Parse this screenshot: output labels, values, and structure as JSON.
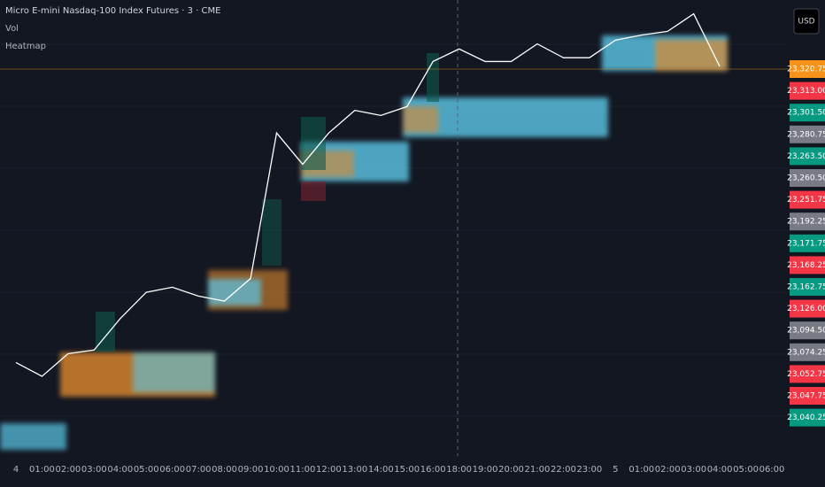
{
  "chart_data": {
    "type": "line",
    "title": "Micro E-mini Nasdaq-100 Index Futures · 3 · CME",
    "indicators": [
      "Vol",
      "Heatmap"
    ],
    "currency": "USD",
    "categories": [
      "4",
      "01:00",
      "02:00",
      "03:00",
      "04:00",
      "05:00",
      "06:00",
      "07:00",
      "08:00",
      "09:00",
      "10:00",
      "11:00",
      "12:00",
      "13:00",
      "14:00",
      "15:00",
      "16:00",
      "18:00",
      "19:00",
      "20:00",
      "21:00",
      "22:00",
      "23:00",
      "5",
      "01:00",
      "02:00",
      "03:00",
      "04:00",
      "05:00",
      "06:00"
    ],
    "values": [
      23081,
      23070,
      23088,
      23091,
      23116,
      23137,
      23141,
      23134,
      23130,
      23148,
      23264,
      23239,
      23264,
      23282,
      23278,
      23285,
      23321,
      23331,
      23321,
      23321,
      23335,
      23324,
      23324,
      23338,
      23342,
      23345,
      23359,
      23317,
      null,
      null
    ],
    "color": "#ffffff",
    "ylim": [
      23010,
      23370
    ],
    "price_tags": [
      {
        "label": "23,320.75",
        "color": "#f7931a"
      },
      {
        "label": "23,313.00",
        "color": "#f23645"
      },
      {
        "label": "23,301.50",
        "color": "#089981"
      },
      {
        "label": "23,280.75",
        "color": "#787b86"
      },
      {
        "label": "23,263.50",
        "color": "#089981"
      },
      {
        "label": "23,260.50",
        "color": "#787b86"
      },
      {
        "label": "23,251.75",
        "color": "#f23645"
      },
      {
        "label": "23,192.25",
        "color": "#787b86"
      },
      {
        "label": "23,171.75",
        "color": "#089981"
      },
      {
        "label": "23,168.25",
        "color": "#f23645"
      },
      {
        "label": "23,162.75",
        "color": "#089981"
      },
      {
        "label": "23,126.00",
        "color": "#f23645"
      },
      {
        "label": "23,094.50",
        "color": "#787b86"
      },
      {
        "label": "23,074.25",
        "color": "#787b86"
      },
      {
        "label": "23,052.75",
        "color": "#f23645"
      },
      {
        "label": "23,047.75",
        "color": "#f23645"
      },
      {
        "label": "23,040.25",
        "color": "#089981"
      }
    ]
  }
}
